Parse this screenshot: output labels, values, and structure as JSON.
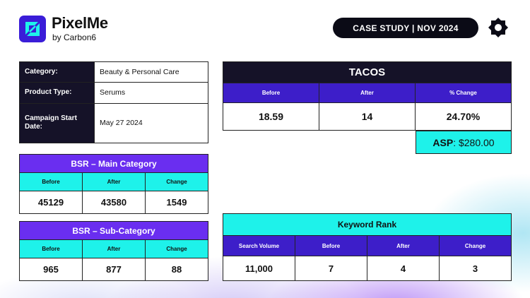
{
  "brand": {
    "name": "PixelMe",
    "sub": "by Carbon6",
    "accent": "#3a1dd8",
    "logo_icon": "pixelme-logo-icon",
    "corner_icon": "gear-icon"
  },
  "badge": {
    "label": "CASE STUDY | NOV 2024"
  },
  "info": {
    "rows": [
      {
        "key": "Category:",
        "value": "Beauty & Personal Care"
      },
      {
        "key": "Product Type:",
        "value": "Serums"
      },
      {
        "key": "Campaign Start Date:",
        "value": "May 27 2024"
      }
    ]
  },
  "tacos": {
    "title": "TACOS",
    "headers": [
      "Before",
      "After",
      "% Change"
    ],
    "values": [
      "18.59",
      "14",
      "24.70%"
    ]
  },
  "asp": {
    "label": "ASP",
    "value": ": $280.00"
  },
  "bsr_main": {
    "title": "BSR – Main Category",
    "headers": [
      "Before",
      "After",
      "Change"
    ],
    "values": [
      "45129",
      "43580",
      "1549"
    ]
  },
  "bsr_sub": {
    "title": "BSR – Sub-Category",
    "headers": [
      "Before",
      "After",
      "Change"
    ],
    "values": [
      "965",
      "877",
      "88"
    ]
  },
  "keyword": {
    "title": "Keyword Rank",
    "headers": [
      "Search Volume",
      "Before",
      "After",
      "Change"
    ],
    "values": [
      "11,000",
      "7",
      "4",
      "3"
    ]
  },
  "colors": {
    "dark": "#151228",
    "purple": "#3d1ec9",
    "violet": "#6a2ef0",
    "cyan": "#1ef2ea"
  }
}
